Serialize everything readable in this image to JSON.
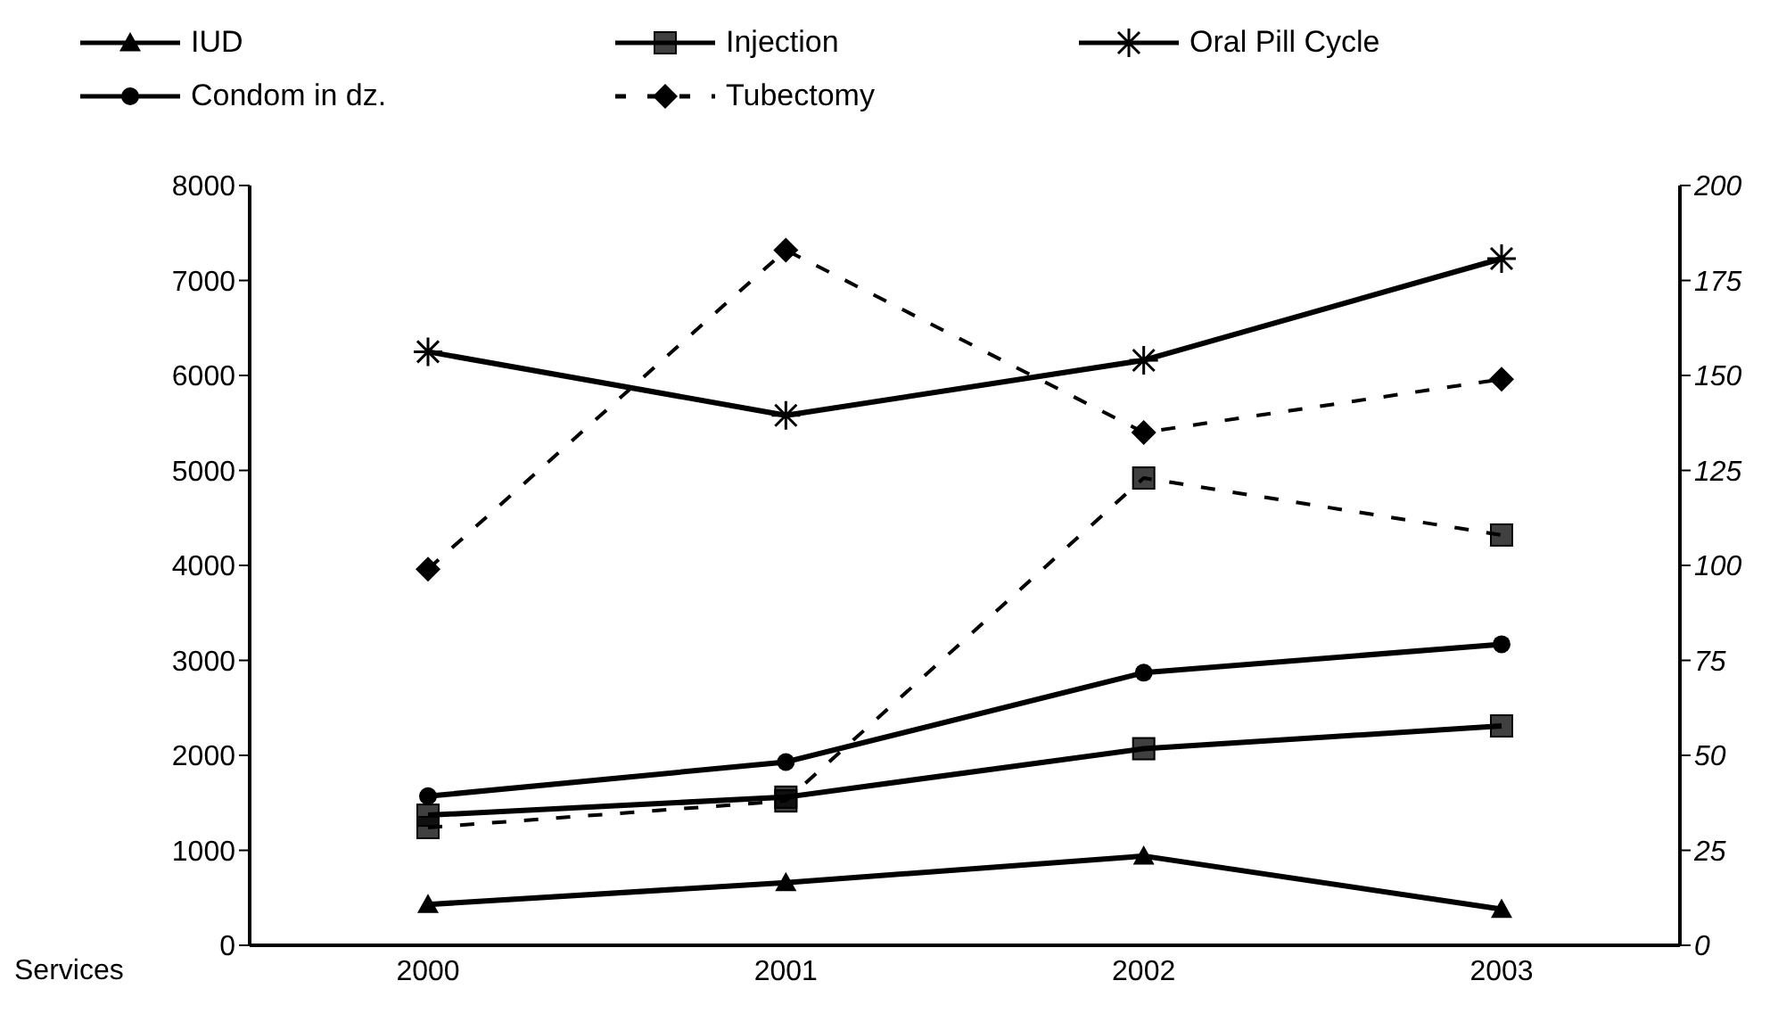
{
  "chart_data": {
    "type": "line",
    "ylabel": "Services",
    "categories": [
      "2000",
      "2001",
      "2002",
      "2003"
    ],
    "series": [
      {
        "name": "IUD",
        "color": "#000000",
        "marker": "triangle",
        "line_style": "solid",
        "values": [
          430,
          660,
          940,
          380
        ]
      },
      {
        "name": "Injection",
        "color": "#000000",
        "marker": "square",
        "line_style": "solid",
        "values": [
          1370,
          1560,
          2070,
          2310
        ]
      },
      {
        "name": "Oral Pill Cycle",
        "color": "#000000",
        "marker": "cross",
        "line_style": "solid",
        "values": [
          6250,
          5580,
          6160,
          7230
        ]
      },
      {
        "name": "Condom in dz.",
        "color": "#000000",
        "marker": "circle",
        "line_style": "solid",
        "values": [
          1570,
          1930,
          2870,
          3170
        ]
      },
      {
        "name": "Tubectomy",
        "color": "#000000",
        "marker": "diamond",
        "line_style": "dashed",
        "axis": "y2",
        "values": [
          99,
          183,
          135,
          149
        ]
      },
      {
        "color": "#000000",
        "marker": "square",
        "line_style": "dashed",
        "axis": "y2",
        "values": [
          31,
          38,
          123,
          108
        ]
      }
    ],
    "ylim": [
      0,
      8000
    ],
    "yticks": [
      0,
      1000,
      2000,
      3000,
      4000,
      5000,
      6000,
      7000,
      8000
    ],
    "y2lim": [
      0,
      200
    ],
    "y2ticks": [
      0,
      25,
      50,
      75,
      100,
      125,
      150,
      175,
      200
    ],
    "grid": false,
    "legend": "top"
  }
}
